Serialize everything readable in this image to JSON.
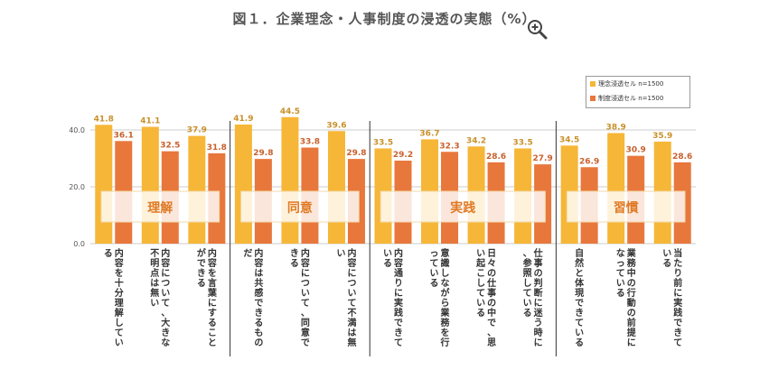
{
  "title": "図１．企業理念・人事制度の浸透の実態（%）",
  "zoom_icon": "zoom-in-icon",
  "colors": {
    "series_1": "#f6b637",
    "series_2": "#e8773c",
    "label_1": "#c8912a",
    "label_2": "#c8602c",
    "group_text": "#e07a25",
    "axis_text": "#555555",
    "grid": "#cccccc",
    "category_text": "#333333"
  },
  "chart_data": {
    "type": "bar",
    "title": "図１．企業理念・人事制度の浸透の実態（%）",
    "ylim": [
      0,
      60
    ],
    "yticks": [
      "0.0",
      "20.0",
      "40.0"
    ],
    "ytick_values": [
      0,
      20,
      40
    ],
    "legend_position": "top-right",
    "categories": [
      "内容を十分理解している",
      "内容について、大きな不明点は無い",
      "内容を言葉にすることができる",
      "内容は共感できるものだ",
      "内容について、同意できる",
      "内容について不満は無い",
      "内容通りに実践できている",
      "意識しながら業務を行っている",
      "日々の仕事の中で、思い起こしている",
      "仕事の判断に迷う時に、参照している",
      "自然と体現できている",
      "業務中の行動の前提になっている",
      "当たり前に実践できている"
    ],
    "series": [
      {
        "name": "理念浸透セル n=1500",
        "values": [
          41.8,
          41.1,
          37.9,
          41.9,
          44.5,
          39.6,
          33.5,
          36.7,
          34.2,
          33.5,
          34.5,
          38.9,
          35.9
        ]
      },
      {
        "name": "制度浸透セル n=1500",
        "values": [
          36.1,
          32.5,
          31.8,
          29.8,
          33.8,
          29.8,
          29.2,
          32.3,
          28.6,
          27.9,
          26.9,
          30.9,
          28.6
        ]
      }
    ],
    "groups": [
      {
        "label": "理解",
        "start": 0,
        "end": 2
      },
      {
        "label": "同意",
        "start": 3,
        "end": 5
      },
      {
        "label": "実践",
        "start": 6,
        "end": 9
      },
      {
        "label": "習慣",
        "start": 10,
        "end": 12
      }
    ]
  }
}
